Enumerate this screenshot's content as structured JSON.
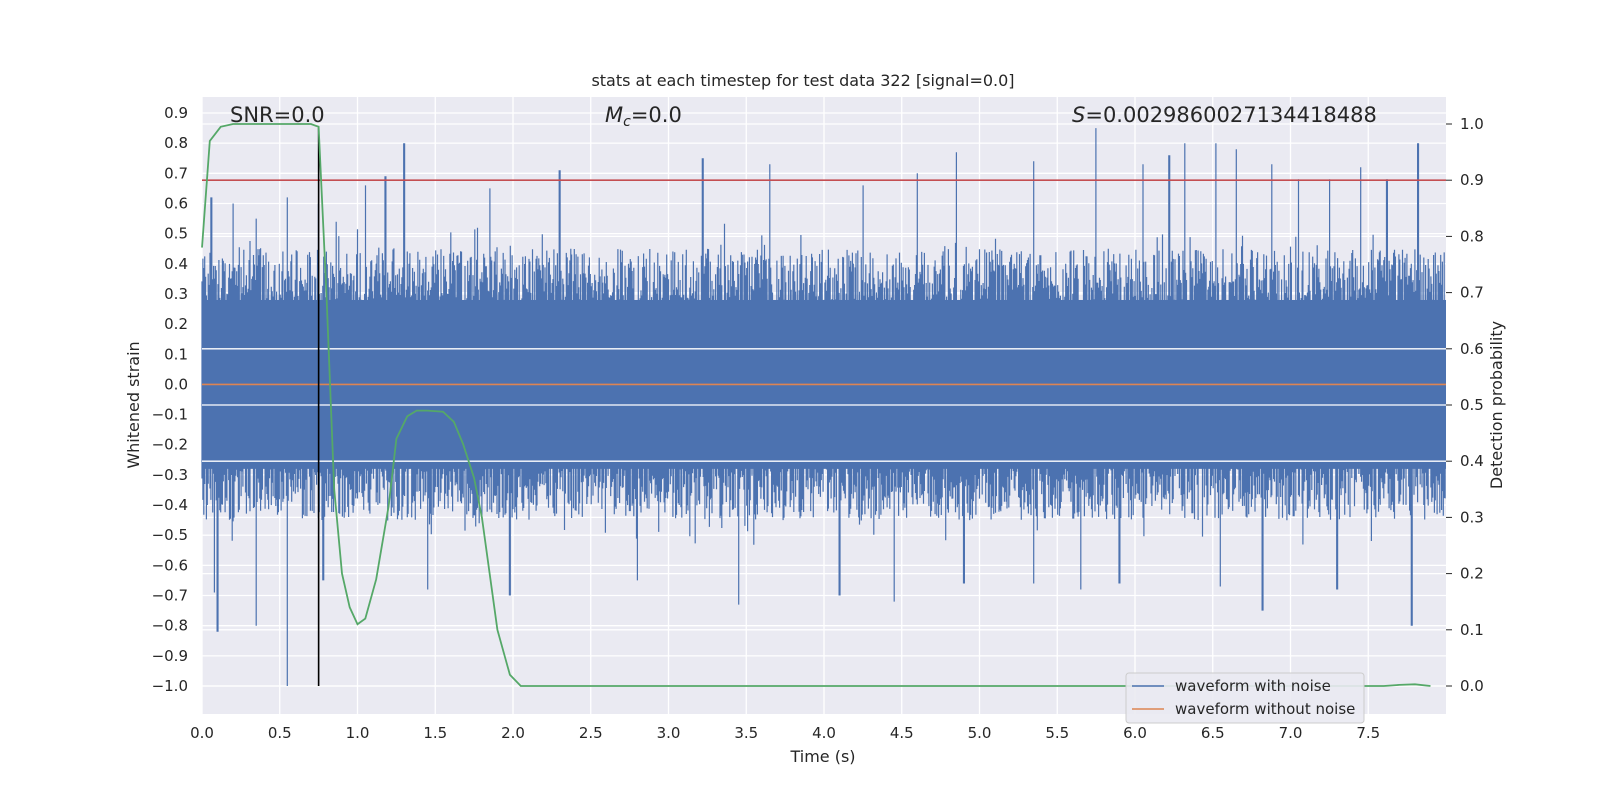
{
  "chart_data": {
    "type": "line",
    "title": "stats at each timestep for test data 322 [signal=0.0]",
    "xlabel": "Time (s)",
    "ylabel": "Whitened strain",
    "ylabel_right": "Detection probability",
    "xlim": [
      0.0,
      8.0
    ],
    "ylim": [
      -1.0,
      0.9
    ],
    "ylim_right": [
      0.0,
      1.0
    ],
    "x_ticks": [
      "0.0",
      "0.5",
      "1.0",
      "1.5",
      "2.0",
      "2.5",
      "3.0",
      "3.5",
      "4.0",
      "4.5",
      "5.0",
      "5.5",
      "6.0",
      "6.5",
      "7.0",
      "7.5"
    ],
    "y_ticks": [
      "0.9",
      "0.8",
      "0.7",
      "0.6",
      "0.5",
      "0.4",
      "0.3",
      "0.2",
      "0.1",
      "0.0",
      "-0.1",
      "-0.2",
      "-0.3",
      "-0.4",
      "-0.5",
      "-0.6",
      "-0.7",
      "-0.8",
      "-0.9",
      "-1.0"
    ],
    "y_ticks_right": [
      "1.0",
      "0.9",
      "0.8",
      "0.7",
      "0.6",
      "0.5",
      "0.4",
      "0.3",
      "0.2",
      "0.1",
      "0.0"
    ],
    "annotations": {
      "snr": "SNR=0.0",
      "mc": "=0.0",
      "mc_symbol": "M",
      "mc_sub": "c",
      "s": "=0.002986002713441848​8",
      "s_symbol": "S"
    },
    "threshold": {
      "value": 0.9,
      "axis": "right",
      "color": "#c44e52"
    },
    "vline": {
      "x": 0.75,
      "y_from": -1.0,
      "y_to": 0.85,
      "color": "#000000"
    },
    "series": [
      {
        "name": "waveform with noise",
        "color": "#4c72b0",
        "axis": "left",
        "envelope": {
          "typical_upper": 0.45,
          "typical_lower": -0.45,
          "peaks_x": [
            0.06,
            0.2,
            0.35,
            0.55,
            0.75,
            1.05,
            1.18,
            1.3,
            1.85,
            2.3,
            3.22,
            3.65,
            4.25,
            4.6,
            4.85,
            5.35,
            5.75,
            6.05,
            6.22,
            6.32,
            6.52,
            6.65,
            6.88,
            7.05,
            7.25,
            7.45,
            7.62,
            7.82
          ],
          "peaks_y": [
            0.62,
            0.6,
            0.55,
            0.62,
            0.6,
            0.66,
            0.69,
            0.8,
            0.65,
            0.71,
            0.75,
            0.73,
            0.66,
            0.7,
            0.77,
            0.74,
            0.85,
            0.73,
            0.76,
            0.8,
            0.8,
            0.78,
            0.73,
            0.68,
            0.68,
            0.72,
            0.68,
            0.8
          ],
          "troughs_x": [
            0.08,
            0.1,
            0.35,
            0.55,
            0.78,
            1.45,
            1.98,
            2.8,
            3.45,
            4.1,
            4.45,
            4.9,
            5.35,
            5.65,
            5.9,
            6.55,
            6.82,
            7.3,
            7.78
          ],
          "troughs_y": [
            -0.69,
            -0.82,
            -0.8,
            -1.0,
            -0.65,
            -0.68,
            -0.7,
            -0.65,
            -0.73,
            -0.7,
            -0.72,
            -0.66,
            -0.66,
            -0.68,
            -0.66,
            -0.67,
            -0.75,
            -0.68,
            -0.8
          ]
        }
      },
      {
        "name": "waveform without noise",
        "color": "#dd8452",
        "axis": "left",
        "x": [
          0.0,
          8.0
        ],
        "y": [
          0.0,
          0.0
        ]
      },
      {
        "name": "detection probability",
        "color": "#55a868",
        "axis": "right",
        "x": [
          0.0,
          0.05,
          0.12,
          0.2,
          0.3,
          0.4,
          0.5,
          0.6,
          0.65,
          0.7,
          0.75,
          0.8,
          0.85,
          0.9,
          0.95,
          1.0,
          1.05,
          1.12,
          1.2,
          1.25,
          1.32,
          1.38,
          1.45,
          1.55,
          1.62,
          1.68,
          1.75,
          1.8,
          1.9,
          1.98,
          2.05,
          2.2,
          7.6,
          7.7,
          7.8,
          7.9
        ],
        "y": [
          0.78,
          0.97,
          0.995,
          1.0,
          1.0,
          1.0,
          1.0,
          1.0,
          1.0,
          1.0,
          0.995,
          0.7,
          0.35,
          0.2,
          0.14,
          0.11,
          0.12,
          0.19,
          0.32,
          0.44,
          0.48,
          0.49,
          0.49,
          0.488,
          0.47,
          0.43,
          0.37,
          0.3,
          0.1,
          0.02,
          0.0,
          0.0,
          0.0,
          0.002,
          0.003,
          0.0
        ]
      }
    ],
    "legend": {
      "placement": "bottom-right",
      "entries": [
        "waveform with noise",
        "waveform without noise"
      ]
    }
  }
}
